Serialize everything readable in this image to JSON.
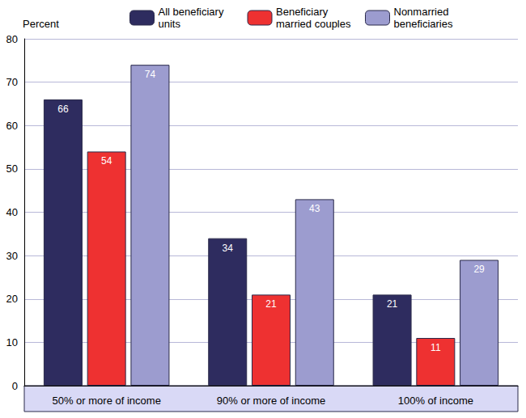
{
  "chart_data": {
    "type": "bar",
    "y_label": "Percent",
    "categories": [
      "50% or more of income",
      "90% or more of income",
      "100% of income"
    ],
    "series": [
      {
        "name": "All beneficiary units",
        "color": "#2e2c5f",
        "values": [
          66,
          34,
          21
        ]
      },
      {
        "name": "Beneficiary married couples",
        "color": "#ee3131",
        "values": [
          54,
          21,
          11
        ]
      },
      {
        "name": "Nonmarried beneficiaries",
        "color": "#9c9ccf",
        "values": [
          74,
          43,
          29
        ]
      }
    ],
    "ylim": [
      0,
      80
    ],
    "yticks": [
      0,
      10,
      20,
      30,
      40,
      50,
      60,
      70,
      80
    ],
    "grid": true,
    "legend": "top",
    "data_labels": true
  }
}
